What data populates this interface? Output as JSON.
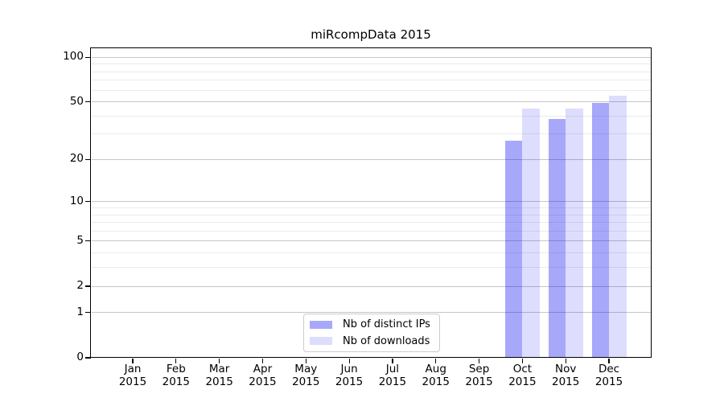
{
  "title": "miRcompData 2015",
  "legend": {
    "items": [
      {
        "label": "Nb of distinct IPs",
        "base_color": "#0000f0",
        "alpha": 0.34,
        "apparent_color": "#a8a8fa"
      },
      {
        "label": "Nb of downloads",
        "base_color": "#0000f0",
        "alpha": 0.135,
        "apparent_color": "#dcdcfc"
      }
    ]
  },
  "chart_data": {
    "type": "bar",
    "title": "miRcompData 2015",
    "categories": [
      "Jan",
      "Feb",
      "Mar",
      "Apr",
      "May",
      "Jun",
      "Jul",
      "Aug",
      "Sep",
      "Oct",
      "Nov",
      "Dec"
    ],
    "year": "2015",
    "series": [
      {
        "name": "Nb of distinct IPs",
        "base_color": "#0000f0",
        "alpha": 0.34,
        "values": [
          0,
          0,
          0,
          0,
          0,
          0,
          0,
          0,
          0,
          27,
          38,
          49
        ]
      },
      {
        "name": "Nb of downloads",
        "base_color": "#0000f0",
        "alpha": 0.135,
        "values": [
          0,
          0,
          0,
          0,
          0,
          0,
          0,
          0,
          0,
          45,
          45,
          55
        ]
      }
    ],
    "y_scale": "log1p",
    "y_major_ticks": [
      0,
      1,
      2,
      5,
      10,
      20,
      50,
      100
    ],
    "y_minor_gridlines": [
      3,
      4,
      6,
      7,
      8,
      9,
      30,
      40,
      60,
      70,
      80,
      90
    ],
    "ylim": [
      0,
      115
    ],
    "xlabel": "",
    "ylabel": "",
    "grid": true,
    "legend_position": "lower center inside",
    "colors": {
      "grid_major": "#c6c6c6",
      "grid_minor": "#ebebeb",
      "axis": "#000000",
      "background": "#ffffff"
    }
  }
}
